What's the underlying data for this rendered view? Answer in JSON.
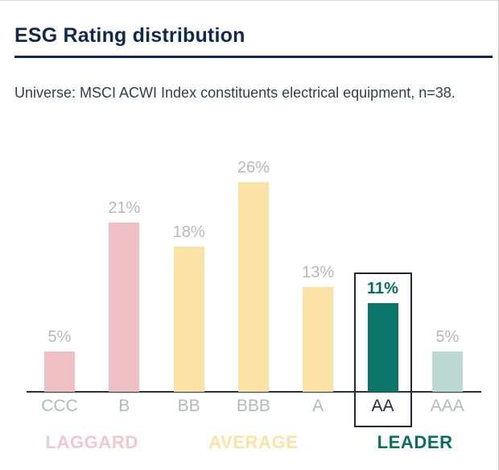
{
  "header": {
    "title": "ESG Rating distribution",
    "subtitle": "Universe: MSCI ACWI Index constituents electrical equipment, n=38."
  },
  "colors": {
    "title_navy": "#13294B",
    "divider_navy": "#13294B",
    "subtitle_text": "#2F3E53",
    "axis_line": "#2A333D",
    "value_label_gray": "#B5B9BB",
    "category_label_gray": "#B5B9BB",
    "highlight_value_text": "#0A6E5F",
    "highlight_category_text": "#1E2B38",
    "highlight_box_border": "#1C2A38",
    "laggard_bar": "#EFBFC6",
    "average_bar": "#FBE3A7",
    "leader_bar": "#0A7568",
    "leader_light_bar": "#BBD8D3"
  },
  "chart_data": {
    "type": "bar",
    "title": "ESG Rating distribution",
    "subtitle": "Universe: MSCI ACWI Index constituents electrical equipment, n=38.",
    "categories": [
      "CCC",
      "B",
      "BB",
      "BBB",
      "A",
      "AA",
      "AAA"
    ],
    "values": [
      5,
      21,
      18,
      26,
      13,
      11,
      5
    ],
    "value_labels": [
      "5%",
      "21%",
      "18%",
      "26%",
      "13%",
      "11%",
      "5%"
    ],
    "unit": "%",
    "ylim": [
      0,
      30
    ],
    "grid": false,
    "legend": "none",
    "xlabel": "",
    "ylabel": "",
    "bar_colors": [
      "#EFBFC6",
      "#EFBFC6",
      "#FBE3A7",
      "#FBE3A7",
      "#FBE3A7",
      "#0A7568",
      "#BBD8D3"
    ],
    "highlighted_category": "AA",
    "highlighted_value_label": "11%",
    "groups": [
      {
        "label": "LAGGARD",
        "categories": [
          "CCC",
          "B"
        ],
        "color": "#F2C7CE"
      },
      {
        "label": "AVERAGE",
        "categories": [
          "BB",
          "BBB",
          "A"
        ],
        "color": "#FBE3A7"
      },
      {
        "label": "LEADER",
        "categories": [
          "AA",
          "AAA"
        ],
        "color": "#0A6E5F"
      }
    ]
  }
}
